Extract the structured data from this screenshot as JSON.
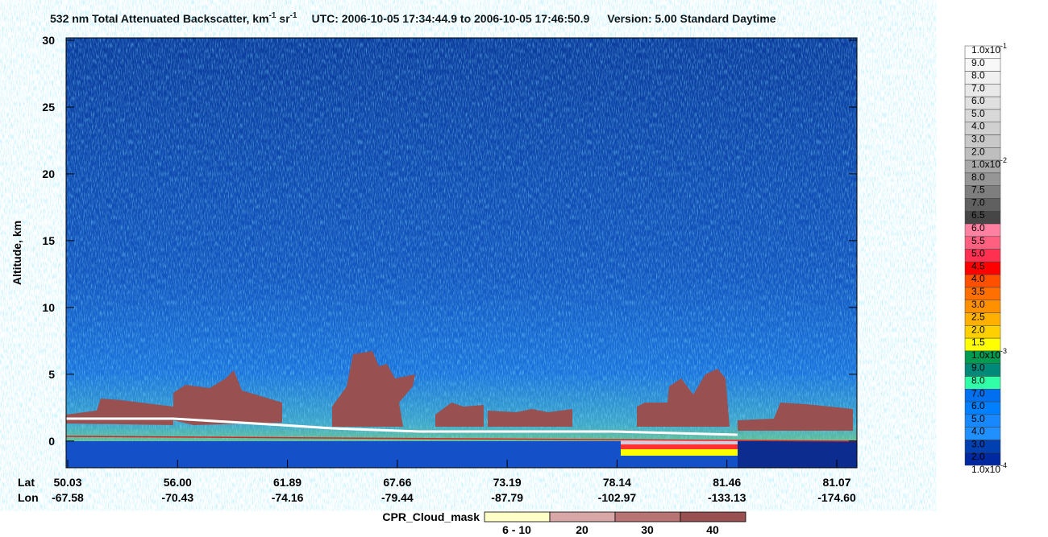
{
  "chart_data": {
    "type": "curtain",
    "title_parts": [
      "532 nm Total Attenuated Backscatter, km",
      "-1",
      " sr",
      "-1"
    ],
    "utc": "UTC:  2006-10-05 17:34:44.9  to  2006-10-05 17:46:50.9",
    "version": "Version: 5.00  Standard  Daytime",
    "ylabel": "Altitude, km",
    "ylim": [
      -2,
      30
    ],
    "yticks": [
      0,
      5,
      10,
      15,
      20,
      25,
      30
    ],
    "x_row_labels": [
      "Lat",
      "Lon"
    ],
    "lat_labels": [
      "50.03",
      "56.00",
      "61.89",
      "67.66",
      "73.19",
      "78.14",
      "81.46",
      "81.07"
    ],
    "lon_labels": [
      "-67.58",
      "-70.43",
      "-74.16",
      "-79.44",
      "-87.79",
      "-102.97",
      "-133.13",
      "-174.60"
    ],
    "colorbar": {
      "labels": [
        {
          "label": "1.0x10",
          "exp": "-1"
        },
        {
          "label": "9.0"
        },
        {
          "label": "8.0"
        },
        {
          "label": "7.0"
        },
        {
          "label": "6.0"
        },
        {
          "label": "5.0"
        },
        {
          "label": "4.0"
        },
        {
          "label": "3.0"
        },
        {
          "label": "2.0"
        },
        {
          "label": "1.0x10",
          "exp": "-2"
        },
        {
          "label": "8.0"
        },
        {
          "label": "7.5"
        },
        {
          "label": "7.0"
        },
        {
          "label": "6.5"
        },
        {
          "label": "6.0"
        },
        {
          "label": "5.5"
        },
        {
          "label": "5.0"
        },
        {
          "label": "4.5"
        },
        {
          "label": "4.0"
        },
        {
          "label": "3.5"
        },
        {
          "label": "3.0"
        },
        {
          "label": "2.5"
        },
        {
          "label": "2.0"
        },
        {
          "label": "1.5"
        },
        {
          "label": "1.0x10",
          "exp": "-3"
        },
        {
          "label": "9.0"
        },
        {
          "label": "8.0"
        },
        {
          "label": "7.0"
        },
        {
          "label": "6.0"
        },
        {
          "label": "5.0"
        },
        {
          "label": "4.0"
        },
        {
          "label": "3.0"
        },
        {
          "label": "2.0"
        },
        {
          "label": "1.0x10",
          "exp": "-4"
        }
      ],
      "colors": [
        "#ffffff",
        "#f8f8f8",
        "#f0f0f0",
        "#e8e8e8",
        "#e0e0e0",
        "#d8d8d8",
        "#d0d0d0",
        "#c8c8c8",
        "#bebebe",
        "#a8a8a8",
        "#969696",
        "#7e7e7e",
        "#606060",
        "#464646",
        "#ff80a0",
        "#ff6080",
        "#ff3050",
        "#ff0000",
        "#ff5000",
        "#ff7000",
        "#ff9000",
        "#ffb000",
        "#ffd000",
        "#ffff00",
        "#009a50",
        "#008878",
        "#30ffa8",
        "#0070f0",
        "#0080ff",
        "#1888ff",
        "#2090ff",
        "#0040b0",
        "#0028a0"
      ]
    },
    "cloud_mask": {
      "title": "CPR_Cloud_mask",
      "labels": [
        "6 - 10",
        "20",
        "30",
        "40"
      ],
      "colors": [
        "#ffffc8",
        "#d8a8a8",
        "#b87474",
        "#985050"
      ]
    }
  }
}
